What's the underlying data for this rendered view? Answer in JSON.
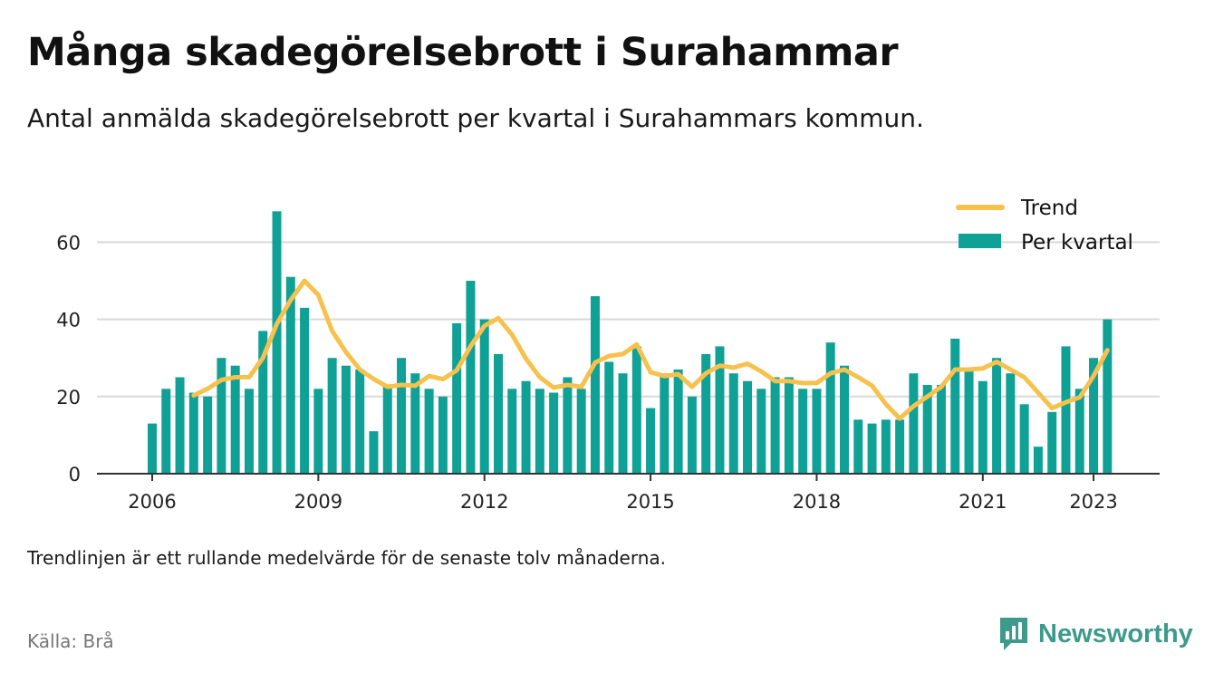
{
  "title": "Många skadegörelsebrott i Surahammar",
  "subtitle": "Antal anmälda skadegörelsebrott per kvartal i Surahammars kommun.",
  "note": "Trendlinjen är ett rullande medelvärde för de senaste tolv månaderna.",
  "source": "Källa: Brå",
  "brand": {
    "name": "Newsworthy",
    "logo_icon": "bar-chart-speech-bubble-icon",
    "color": "#3e9a8a"
  },
  "chart_data": {
    "type": "bar",
    "title": "Många skadegörelsebrott i Surahammar",
    "subtitle": "Antal anmälda skadegörelsebrott per kvartal i Surahammars kommun.",
    "xlabel": "",
    "ylabel": "",
    "ylim": [
      0,
      70
    ],
    "yticks": [
      0,
      20,
      40,
      60
    ],
    "xticks": [
      "2006",
      "2009",
      "2012",
      "2015",
      "2018",
      "2021",
      "2023"
    ],
    "grid": true,
    "legend_position": "top-right",
    "categories": [
      "2006 Q1",
      "2006 Q2",
      "2006 Q3",
      "2006 Q4",
      "2007 Q1",
      "2007 Q2",
      "2007 Q3",
      "2007 Q4",
      "2008 Q1",
      "2008 Q2",
      "2008 Q3",
      "2008 Q4",
      "2009 Q1",
      "2009 Q2",
      "2009 Q3",
      "2009 Q4",
      "2010 Q1",
      "2010 Q2",
      "2010 Q3",
      "2010 Q4",
      "2011 Q1",
      "2011 Q2",
      "2011 Q3",
      "2011 Q4",
      "2012 Q1",
      "2012 Q2",
      "2012 Q3",
      "2012 Q4",
      "2013 Q1",
      "2013 Q2",
      "2013 Q3",
      "2013 Q4",
      "2014 Q1",
      "2014 Q2",
      "2014 Q3",
      "2014 Q4",
      "2015 Q1",
      "2015 Q2",
      "2015 Q3",
      "2015 Q4",
      "2016 Q1",
      "2016 Q2",
      "2016 Q3",
      "2016 Q4",
      "2017 Q1",
      "2017 Q2",
      "2017 Q3",
      "2017 Q4",
      "2018 Q1",
      "2018 Q2",
      "2018 Q3",
      "2018 Q4",
      "2019 Q1",
      "2019 Q2",
      "2019 Q3",
      "2019 Q4",
      "2020 Q1",
      "2020 Q2",
      "2020 Q3",
      "2020 Q4",
      "2021 Q1",
      "2021 Q2",
      "2021 Q3",
      "2021 Q4",
      "2022 Q1",
      "2022 Q2",
      "2022 Q3",
      "2022 Q4",
      "2023 Q1",
      "2023 Q2"
    ],
    "series": [
      {
        "name": "Per kvartal",
        "type": "bar",
        "color": "#0fa196",
        "values": [
          13,
          22,
          25,
          21,
          20,
          30,
          28,
          22,
          37,
          68,
          51,
          43,
          22,
          30,
          28,
          27,
          11,
          23,
          30,
          26,
          22,
          20,
          39,
          50,
          40,
          31,
          22,
          24,
          22,
          21,
          25,
          22,
          46,
          29,
          26,
          33,
          17,
          26,
          27,
          20,
          31,
          33,
          26,
          24,
          22,
          25,
          25,
          22,
          22,
          34,
          28,
          14,
          13,
          14,
          14,
          26,
          23,
          23,
          35,
          27,
          24,
          30,
          26,
          18,
          7,
          16,
          33,
          22,
          30,
          40
        ]
      },
      {
        "name": "Trend",
        "type": "line",
        "color": "#f7c14d",
        "values": [
          null,
          null,
          null,
          20.3,
          22,
          24.3,
          25,
          25,
          30,
          38.8,
          45,
          50,
          46.3,
          37,
          31.5,
          27,
          24.5,
          22.5,
          23,
          22.8,
          25.3,
          24.5,
          26.8,
          33,
          38.3,
          40.3,
          36,
          29.8,
          25,
          22.3,
          23,
          22.5,
          28.8,
          30.5,
          31,
          33.5,
          26.3,
          25.3,
          25.8,
          22.5,
          26,
          28,
          27.5,
          28.5,
          26.5,
          24,
          24,
          23.5,
          23.5,
          26,
          27,
          25,
          22.8,
          18,
          14.3,
          17.5,
          20,
          22.5,
          27,
          27,
          27.3,
          29,
          27,
          25,
          21,
          17,
          18.5,
          19.8,
          25.3,
          32
        ]
      }
    ]
  }
}
